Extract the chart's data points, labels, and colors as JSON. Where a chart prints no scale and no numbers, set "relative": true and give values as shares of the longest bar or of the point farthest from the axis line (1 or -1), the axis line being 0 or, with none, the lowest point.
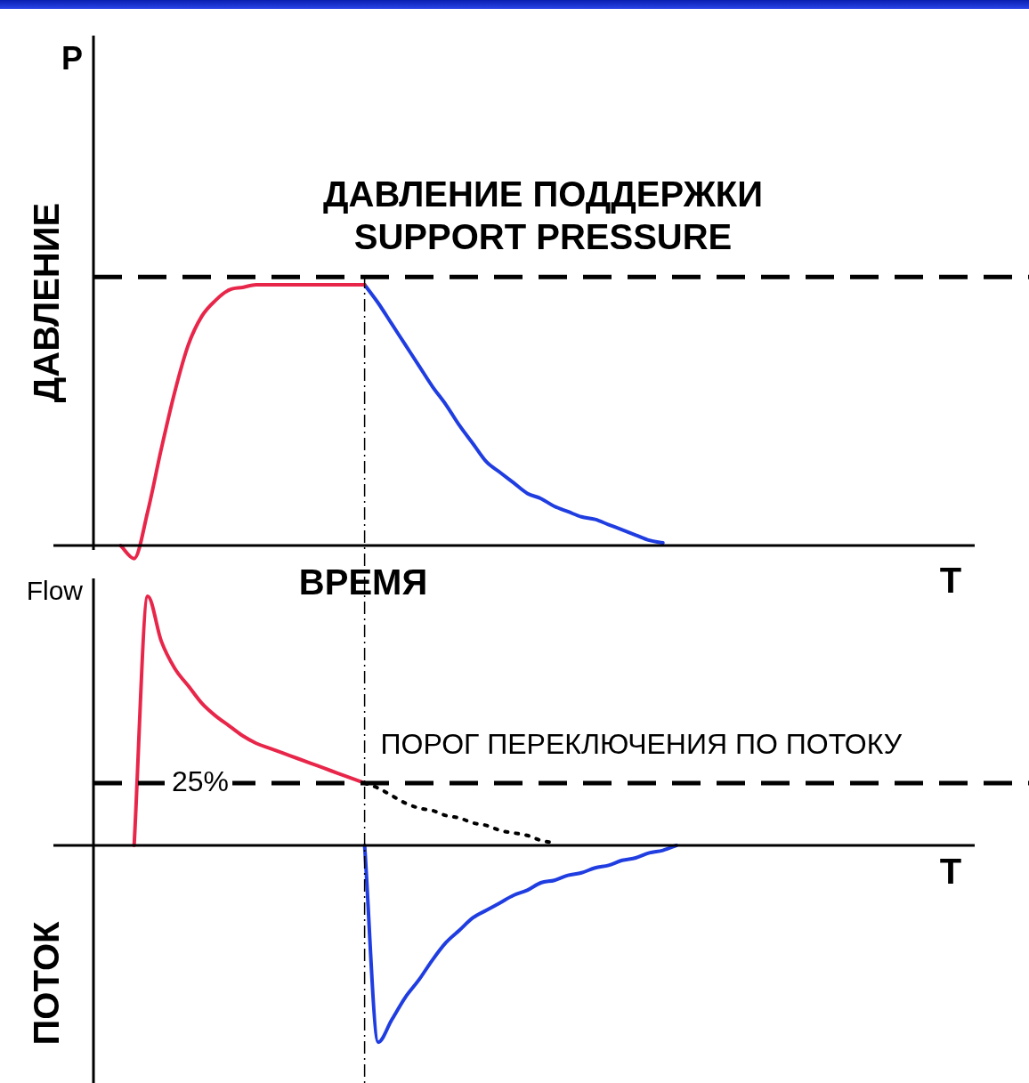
{
  "chart_data": [
    {
      "type": "line",
      "relative": true,
      "ylabel": "ДАВЛЕНИЕ",
      "xlabel": "ВРЕМЯ",
      "legend": false,
      "marker": "none",
      "categories": [
        null,
        null,
        null,
        null,
        null,
        null,
        null,
        null,
        null,
        null,
        null,
        null,
        null,
        null,
        null,
        null,
        null,
        null,
        null,
        null,
        null,
        null,
        null,
        null,
        null,
        null,
        null,
        null,
        null,
        null,
        null,
        null,
        null,
        null,
        null,
        null,
        null,
        null,
        null,
        null,
        null,
        null,
        null,
        null,
        null,
        null,
        null,
        null,
        null,
        null,
        null,
        null,
        null,
        null,
        null,
        null,
        null,
        null,
        null,
        null,
        null,
        null,
        null,
        null,
        null,
        null
      ],
      "series": [
        {
          "color": "#e8264a",
          "values": [
            null,
            null,
            0,
            -0.05,
            0.13,
            0.37,
            0.59,
            0.77,
            0.88,
            0.94,
            0.98,
            0.99,
            1,
            1,
            1,
            1,
            1,
            1,
            1,
            1,
            1,
            null,
            null,
            null,
            null,
            null,
            null,
            null,
            null,
            null,
            null,
            null,
            null,
            null,
            null,
            null,
            null,
            null,
            null,
            null,
            null,
            null,
            null,
            null,
            null,
            null,
            null,
            null,
            null,
            null,
            null,
            null,
            null,
            null,
            null,
            null,
            null,
            null,
            null,
            null,
            null,
            null,
            null,
            null,
            null,
            null
          ]
        },
        {
          "color": "#1f3de0",
          "values": [
            null,
            null,
            null,
            null,
            null,
            null,
            null,
            null,
            null,
            null,
            null,
            null,
            null,
            null,
            null,
            null,
            null,
            null,
            null,
            null,
            1,
            0.93,
            0.85,
            0.77,
            0.69,
            0.61,
            0.54,
            0.46,
            0.39,
            0.32,
            0.28,
            0.24,
            0.2,
            0.18,
            0.15,
            0.13,
            0.11,
            0.1,
            0.08,
            0.06,
            0.04,
            0.02,
            0.01,
            null,
            null,
            null,
            null,
            null,
            null,
            null,
            null,
            null,
            null,
            null,
            null,
            null,
            null,
            null,
            null,
            null,
            null,
            null,
            null,
            null,
            null,
            null
          ]
        }
      ],
      "ref_lines": [
        {
          "axis": "y",
          "value": 1.03,
          "label": "ДАВЛЕНИЕ ПОДДЕРЖКИ\nSUPPORT PRESSURE",
          "color": "#000000",
          "line_style": "dashed"
        }
      ],
      "annotations": [
        "P",
        "T"
      ]
    },
    {
      "type": "line",
      "relative": true,
      "ylabel": "ПОТОК",
      "legend": false,
      "marker": "none",
      "categories": [
        null,
        null,
        null,
        null,
        null,
        null,
        null,
        null,
        null,
        null,
        null,
        null,
        null,
        null,
        null,
        null,
        null,
        null,
        null,
        null,
        null,
        null,
        null,
        null,
        null,
        null,
        null,
        null,
        null,
        null,
        null,
        null,
        null,
        null,
        null,
        null,
        null,
        null,
        null,
        null,
        null,
        null,
        null,
        null,
        null,
        null,
        null,
        null,
        null,
        null,
        null,
        null,
        null,
        null,
        null,
        null,
        null,
        null,
        null,
        null,
        null,
        null,
        null,
        null,
        null,
        null
      ],
      "series": [
        {
          "color": "#e8264a",
          "values": [
            null,
            null,
            null,
            0,
            1,
            0.82,
            0.71,
            0.64,
            0.57,
            0.52,
            0.48,
            0.44,
            0.41,
            0.39,
            0.37,
            0.35,
            0.33,
            0.31,
            0.29,
            0.27,
            0.25,
            null,
            null,
            null,
            null,
            null,
            null,
            null,
            null,
            null,
            null,
            null,
            null,
            null,
            null,
            null,
            null,
            null,
            null,
            null,
            null,
            null,
            null,
            null,
            null,
            null,
            null,
            null,
            null,
            null,
            null,
            null,
            null,
            null,
            null,
            null,
            null,
            null,
            null,
            null,
            null,
            null,
            null,
            null,
            null,
            null
          ]
        },
        {
          "color": "#000000",
          "line_style": "dotted",
          "values": [
            null,
            null,
            null,
            null,
            null,
            null,
            null,
            null,
            null,
            null,
            null,
            null,
            null,
            null,
            null,
            null,
            null,
            null,
            null,
            null,
            0.25,
            0.23,
            0.2,
            0.17,
            0.15,
            0.14,
            0.12,
            0.11,
            0.09,
            0.08,
            0.06,
            0.05,
            0.04,
            0.02,
            0.01,
            null,
            null,
            null,
            null,
            null,
            null,
            null,
            null,
            null,
            null,
            null,
            null,
            null,
            null,
            null,
            null,
            null,
            null,
            null,
            null,
            null,
            null,
            null,
            null,
            null,
            null,
            null,
            null,
            null,
            null,
            null
          ]
        },
        {
          "color": "#1f3de0",
          "values": [
            null,
            null,
            null,
            null,
            null,
            null,
            null,
            null,
            null,
            null,
            null,
            null,
            null,
            null,
            null,
            null,
            null,
            null,
            null,
            null,
            0,
            -0.79,
            -0.7,
            -0.61,
            -0.54,
            -0.46,
            -0.39,
            -0.34,
            -0.29,
            -0.26,
            -0.23,
            -0.2,
            -0.18,
            -0.15,
            -0.14,
            -0.12,
            -0.11,
            -0.09,
            -0.08,
            -0.06,
            -0.05,
            -0.03,
            -0.02,
            0,
            null,
            null,
            null,
            null,
            null,
            null,
            null,
            null,
            null,
            null,
            null,
            null,
            null,
            null,
            null,
            null,
            null,
            null,
            null,
            null,
            null,
            null
          ]
        }
      ],
      "ref_lines": [
        {
          "axis": "y",
          "value": 0.25,
          "label": "25%",
          "color": "#000000",
          "line_style": "dashed"
        }
      ],
      "annotations": [
        "Flow",
        "T",
        "ПОРОГ ПЕРЕКЛЮЧЕНИЯ ПО ПОТОКУ"
      ]
    }
  ]
}
